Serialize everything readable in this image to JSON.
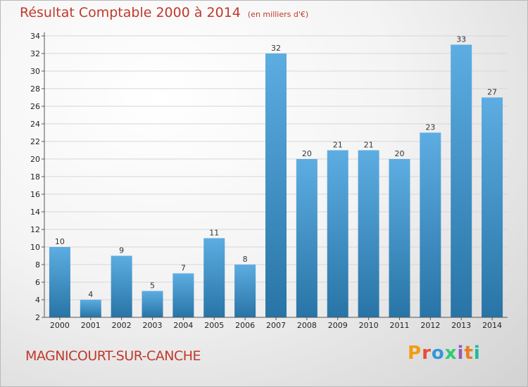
{
  "header": {
    "title": "Résultat Comptable 2000 à 2014",
    "unit": "(en milliers d'€)"
  },
  "footer": {
    "town": "MAGNICOURT-SUR-CANCHE",
    "logo": "Proxiti",
    "logo_colors": [
      "#f39c12",
      "#e74c3c",
      "#3498db",
      "#2ecc71",
      "#9b59b6",
      "#e67e22",
      "#1abc9c"
    ]
  },
  "chart_data": {
    "type": "bar",
    "title": "Résultat Comptable 2000 à 2014",
    "subtitle": "(en milliers d'€)",
    "xlabel": "",
    "ylabel": "",
    "categories": [
      "2000",
      "2001",
      "2002",
      "2003",
      "2004",
      "2005",
      "2006",
      "2007",
      "2008",
      "2009",
      "2010",
      "2011",
      "2012",
      "2013",
      "2014"
    ],
    "values": [
      10,
      4,
      9,
      5,
      7,
      11,
      8,
      32,
      20,
      21,
      21,
      20,
      23,
      33,
      27
    ],
    "ylim": [
      2,
      34
    ],
    "yticks": [
      2,
      4,
      6,
      8,
      10,
      12,
      14,
      16,
      18,
      20,
      22,
      24,
      26,
      28,
      30,
      32,
      34
    ],
    "grid": true,
    "bar_color_top": "#5dade2",
    "bar_color_bottom": "#2874a6"
  }
}
